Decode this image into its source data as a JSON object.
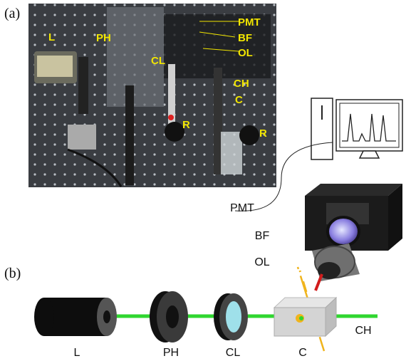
{
  "panel_a": {
    "tag": "(a)",
    "labels": [
      "L",
      "PH",
      "CL",
      "PMT",
      "BF",
      "OL",
      "CH",
      "C",
      "R",
      "R"
    ]
  },
  "panel_b": {
    "tag": "(b)",
    "side_labels": [
      "PMT",
      "BF",
      "OL"
    ],
    "bottom_labels": [
      "L",
      "PH",
      "CL",
      "C",
      "CH"
    ]
  }
}
